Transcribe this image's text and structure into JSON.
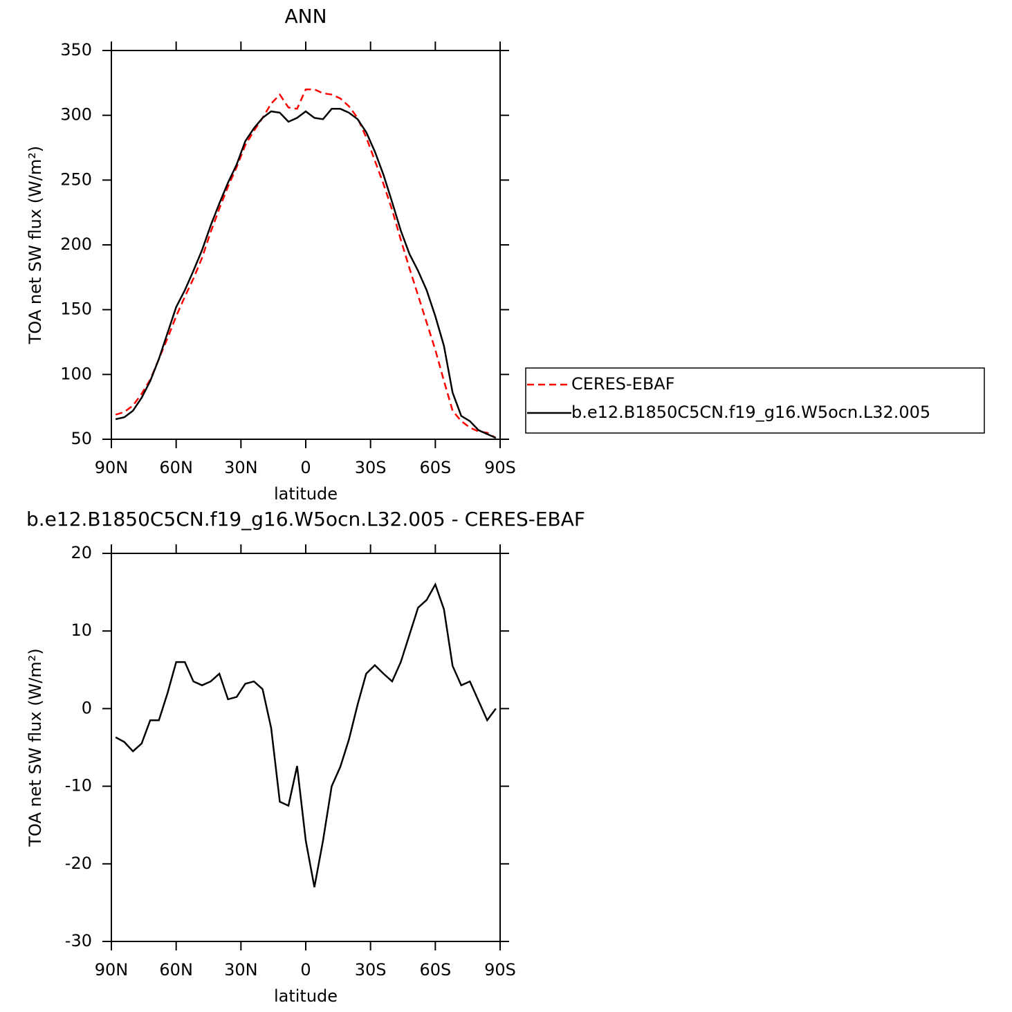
{
  "chart_data": [
    {
      "type": "line",
      "title": "ANN",
      "xlabel": "latitude",
      "ylabel": "TOA net SW flux (W/m²)",
      "x": [
        88,
        84,
        80,
        76,
        72,
        68,
        64,
        60,
        56,
        52,
        48,
        44,
        40,
        36,
        32,
        28,
        24,
        20,
        16,
        12,
        8,
        4,
        0,
        -4,
        -8,
        -12,
        -16,
        -20,
        -24,
        -28,
        -32,
        -36,
        -40,
        -44,
        -48,
        -52,
        -56,
        -60,
        -64,
        -68,
        -72,
        -76,
        -80,
        -84,
        -88
      ],
      "series": [
        {
          "name": "CERES-EBAF",
          "color": "#ff0000",
          "style": "dashed",
          "values": [
            69,
            71,
            76,
            85,
            96,
            112,
            128,
            145,
            160,
            174,
            190,
            210,
            228,
            245,
            260,
            277,
            288,
            298,
            309,
            316,
            306,
            305,
            320,
            320,
            317,
            316,
            313,
            307,
            298,
            283,
            265,
            247,
            227,
            204,
            182,
            161,
            140,
            119,
            95,
            72,
            64,
            59,
            56,
            55,
            51
          ]
        },
        {
          "name": "b.e12.B1850C5CN.f19_g16.W5ocn.L32.005",
          "color": "#000000",
          "style": "solid",
          "values": [
            65.5,
            67,
            72,
            82,
            95,
            112,
            132,
            152,
            165,
            180,
            196,
            215,
            232,
            248,
            262,
            280,
            290,
            298,
            303,
            302,
            295,
            298,
            303,
            298,
            297,
            305,
            305,
            302,
            297,
            287,
            272,
            254,
            233,
            211,
            193,
            180,
            165,
            145,
            122,
            86,
            68,
            64,
            57,
            54,
            51
          ]
        }
      ],
      "xlim": [
        90,
        -90
      ],
      "xticks": [
        {
          "value": 90,
          "label": "90N"
        },
        {
          "value": 60,
          "label": "60N"
        },
        {
          "value": 30,
          "label": "30N"
        },
        0,
        {
          "value": -30,
          "label": "30S"
        },
        {
          "value": -60,
          "label": "60S"
        },
        {
          "value": -90,
          "label": "90S"
        }
      ],
      "ylim": [
        50,
        350
      ],
      "yticks": [
        50,
        100,
        150,
        200,
        250,
        300,
        350
      ],
      "legend": "right"
    },
    {
      "type": "line",
      "title": "b.e12.B1850C5CN.f19_g16.W5ocn.L32.005 - CERES-EBAF",
      "xlabel": "latitude",
      "ylabel": "TOA net SW flux (W/m²)",
      "x": [
        88,
        84,
        80,
        76,
        72,
        68,
        64,
        60,
        56,
        52,
        48,
        44,
        40,
        36,
        32,
        28,
        24,
        20,
        16,
        12,
        8,
        4,
        0,
        -4,
        -8,
        -12,
        -16,
        -20,
        -24,
        -28,
        -32,
        -36,
        -40,
        -44,
        -48,
        -52,
        -56,
        -60,
        -64,
        -68,
        -72,
        -76,
        -80,
        -84,
        -88
      ],
      "values": [
        -3.7,
        -4.3,
        -5.5,
        -4.5,
        -1.5,
        -1.5,
        2,
        6,
        6,
        3.5,
        3,
        3.5,
        4.5,
        1.2,
        1.5,
        3.2,
        3.5,
        2.5,
        -2.5,
        -12,
        -12.5,
        -7.4,
        -17,
        -23,
        -17,
        -10,
        -7.5,
        -4,
        0.5,
        4.5,
        5.6,
        4.5,
        3.5,
        6,
        9.5,
        13,
        14,
        16,
        12.8,
        5.5,
        3,
        3.5,
        1,
        -1.5,
        0
      ],
      "color": "#000000",
      "xlim": [
        90,
        -90
      ],
      "xticks": [
        {
          "value": 90,
          "label": "90N"
        },
        {
          "value": 60,
          "label": "60N"
        },
        {
          "value": 30,
          "label": "30N"
        },
        0,
        {
          "value": -30,
          "label": "30S"
        },
        {
          "value": -60,
          "label": "60S"
        },
        {
          "value": -90,
          "label": "90S"
        }
      ],
      "ylim": [
        -30,
        20
      ],
      "yticks": [
        -30,
        -20,
        -10,
        0,
        10,
        20
      ]
    }
  ]
}
